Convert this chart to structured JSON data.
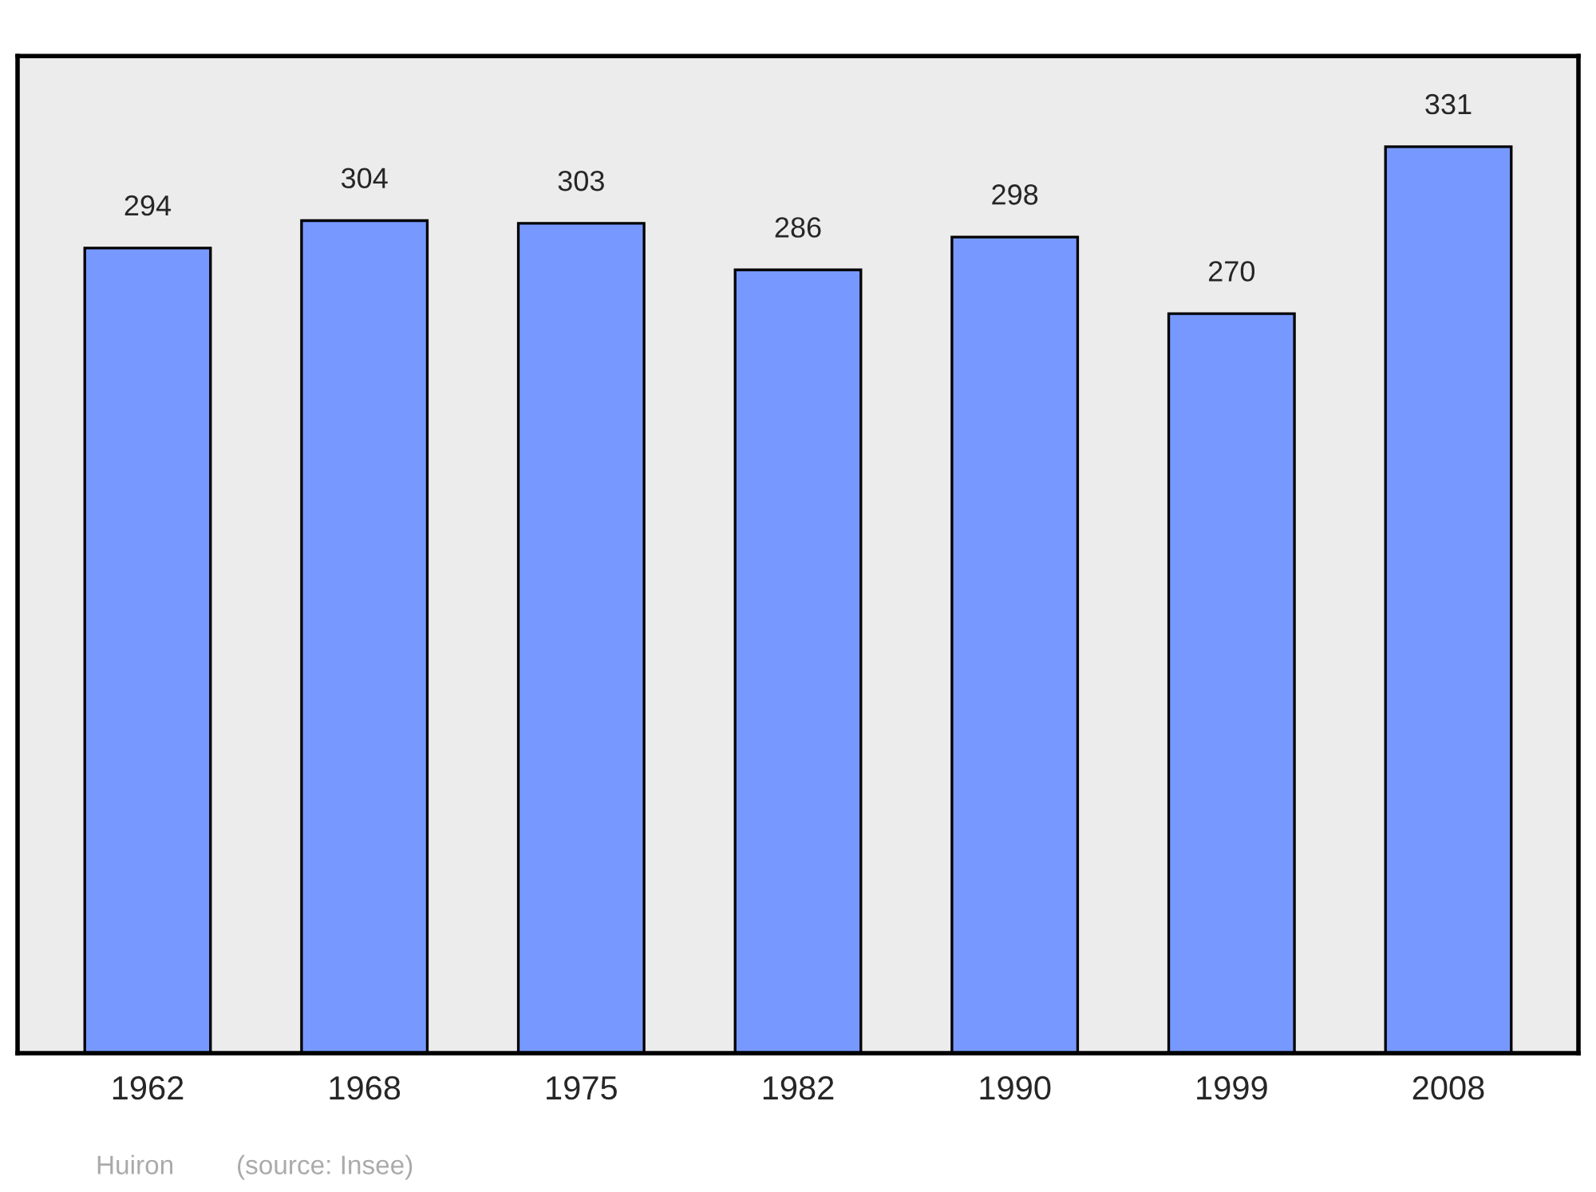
{
  "chart_data": {
    "type": "bar",
    "categories": [
      "1962",
      "1968",
      "1975",
      "1982",
      "1990",
      "1999",
      "2008"
    ],
    "values": [
      294,
      304,
      303,
      286,
      298,
      270,
      331
    ],
    "color": "#7799ff",
    "data_labels": true,
    "grid": false,
    "legend": false,
    "annotations": [
      "Huiron",
      "(source: Insee)"
    ]
  }
}
